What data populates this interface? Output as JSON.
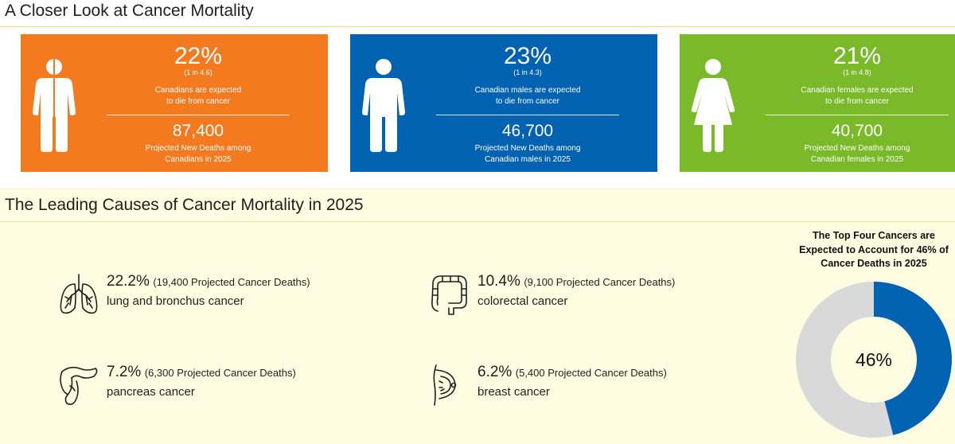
{
  "section1": {
    "title": "A Closer Look at Cancer Mortality"
  },
  "cards": [
    {
      "percent": "22%",
      "ratio": "(1 in 4.6)",
      "desc_line1": "Canadians are expected",
      "desc_line2": "to die from cancer",
      "deaths": "87,400",
      "deaths_line1": "Projected New Deaths among",
      "deaths_line2": "Canadians in 2025",
      "color": "#f47a20",
      "figure": "person-half-icon"
    },
    {
      "percent": "23%",
      "ratio": "(1 in 4.3)",
      "desc_line1": "Canadian males are expected",
      "desc_line2": "to die from cancer",
      "deaths": "46,700",
      "deaths_line1": "Projected New Deaths among",
      "deaths_line2": "Canadian males in 2025",
      "color": "#0062b1",
      "figure": "male-icon"
    },
    {
      "percent": "21%",
      "ratio": "(1 in 4.8)",
      "desc_line1": "Canadian females are expected",
      "desc_line2": "to die from cancer",
      "deaths": "40,700",
      "deaths_line1": "Projected New Deaths among",
      "deaths_line2": "Canadian females in 2025",
      "color": "#7ab929",
      "figure": "female-icon"
    }
  ],
  "section2": {
    "title": "The Leading Causes of Cancer Mortality in 2025"
  },
  "causes": [
    {
      "pct": "22.2%",
      "deaths": "(19,400 Projected Cancer Deaths)",
      "name": "lung and bronchus cancer",
      "icon": "lungs-icon"
    },
    {
      "pct": "10.4%",
      "deaths": "(9,100 Projected Cancer Deaths)",
      "name": "colorectal cancer",
      "icon": "colon-icon"
    },
    {
      "pct": "7.2%",
      "deaths": "(6,300 Projected Cancer Deaths)",
      "name": "pancreas cancer",
      "icon": "pancreas-icon"
    },
    {
      "pct": "6.2%",
      "deaths": "(5,400 Projected Cancer Deaths)",
      "name": "breast cancer",
      "icon": "breast-icon"
    }
  ],
  "donut": {
    "title_line1": "The Top Four Cancers are",
    "title_line2": "Expected to Account for 46% of",
    "title_line3": "Cancer Deaths in 2025",
    "center_label": "46%",
    "value": 46,
    "colors": {
      "filled": "#0062b1",
      "rest": "#d9d9d9",
      "hole": "#fefde1"
    }
  },
  "colors": {
    "accent_rule": "#f1e28a",
    "panel_bg": "#fefde1"
  }
}
